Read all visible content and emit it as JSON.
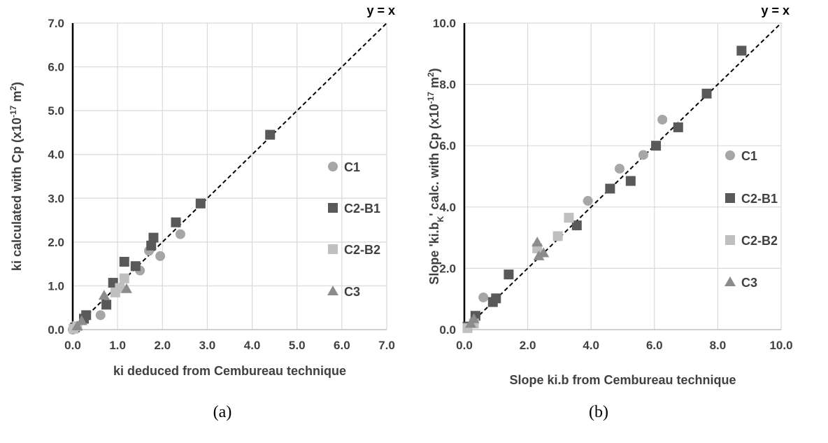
{
  "charts": [
    {
      "id": "a",
      "caption": "(a)",
      "chart_data": {
        "type": "scatter",
        "xlabel": "ki deduced from Cembureau technique",
        "ylabel_main": "ki calculated with Cp (x10",
        "ylabel_sup": "-17",
        "ylabel_mid": " m",
        "ylabel_sup2": "2",
        "ylabel_end": ")",
        "xlim": [
          0,
          7
        ],
        "ylim": [
          0,
          7
        ],
        "xticks": [
          "0.0",
          "1.0",
          "2.0",
          "3.0",
          "4.0",
          "5.0",
          "6.0",
          "7.0"
        ],
        "yticks": [
          "0.0",
          "1.0",
          "2.0",
          "3.0",
          "4.0",
          "5.0",
          "6.0",
          "7.0"
        ],
        "grid": true,
        "identity_label": "y = x",
        "legend_position": "right",
        "series": [
          {
            "name": "C1",
            "marker": "circle",
            "color": "#A6A6A6",
            "x": [
              0.0,
              0.62,
              1.5,
              1.7,
              1.95,
              2.4
            ],
            "y": [
              0.0,
              0.33,
              1.35,
              1.8,
              1.68,
              2.18
            ]
          },
          {
            "name": "C2-B1",
            "marker": "square",
            "color": "#595959",
            "x": [
              0.05,
              0.25,
              0.3,
              0.75,
              0.9,
              1.15,
              1.4,
              1.75,
              1.8,
              2.3,
              2.85,
              4.4
            ],
            "y": [
              0.05,
              0.25,
              0.33,
              0.57,
              1.07,
              1.55,
              1.45,
              1.92,
              2.1,
              2.45,
              2.88,
              4.45
            ]
          },
          {
            "name": "C2-B2",
            "marker": "square",
            "color": "#BFBFBF",
            "x": [
              0.02,
              0.1,
              0.95,
              1.05,
              1.15
            ],
            "y": [
              0.02,
              0.08,
              0.85,
              0.95,
              1.17
            ]
          },
          {
            "name": "C3",
            "marker": "triangle",
            "color": "#8C8C8C",
            "x": [
              0.1,
              0.2,
              0.7,
              1.2
            ],
            "y": [
              0.08,
              0.2,
              0.78,
              0.93
            ]
          }
        ]
      }
    },
    {
      "id": "b",
      "caption": "(b)",
      "chart_data": {
        "type": "scatter",
        "xlabel": "Slope ki.b from Cembureau technique",
        "ylabel_main": "Slope 'ki.b",
        "ylabel_sub": "K",
        "ylabel_mid": "' calc. with Cp (x10",
        "ylabel_sup": "-17",
        "ylabel_mid2": " m",
        "ylabel_sup2": "2",
        "ylabel_end": ")",
        "xlim": [
          0,
          10
        ],
        "ylim": [
          0,
          10
        ],
        "xticks": [
          "0.0",
          "2.0",
          "4.0",
          "6.0",
          "8.0",
          "10.0"
        ],
        "yticks": [
          "0.0",
          "2.0",
          "4.0",
          "6.0",
          "8.0",
          "10.0"
        ],
        "grid": true,
        "identity_label": "y = x",
        "legend_position": "right",
        "series": [
          {
            "name": "C1",
            "marker": "circle",
            "color": "#A6A6A6",
            "x": [
              0.6,
              3.9,
              4.9,
              5.65,
              6.25
            ],
            "y": [
              1.05,
              4.2,
              5.25,
              5.7,
              6.85
            ]
          },
          {
            "name": "C2-B1",
            "marker": "square",
            "color": "#595959",
            "x": [
              0.1,
              0.35,
              0.9,
              1.0,
              1.4,
              3.55,
              4.6,
              5.25,
              6.05,
              6.75,
              7.65,
              8.75
            ],
            "y": [
              0.1,
              0.45,
              0.9,
              1.02,
              1.8,
              3.4,
              4.6,
              4.85,
              6.0,
              6.6,
              7.7,
              9.1
            ]
          },
          {
            "name": "C2-B2",
            "marker": "square",
            "color": "#BFBFBF",
            "x": [
              0.1,
              0.3,
              2.3,
              2.95,
              3.3
            ],
            "y": [
              0.05,
              0.2,
              2.65,
              3.05,
              3.65
            ]
          },
          {
            "name": "C3",
            "marker": "triangle",
            "color": "#8C8C8C",
            "x": [
              0.2,
              0.3,
              2.3,
              2.35,
              2.5
            ],
            "y": [
              0.2,
              0.35,
              2.85,
              2.4,
              2.5
            ]
          }
        ]
      }
    }
  ]
}
